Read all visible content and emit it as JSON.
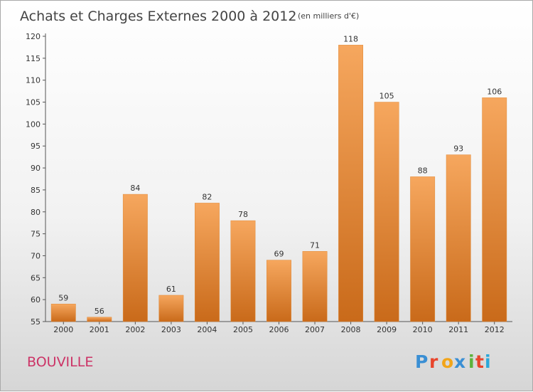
{
  "title": "Achats et Charges Externes 2000 à 2012",
  "subtitle": "(en milliers d'€)",
  "place": "BOUVILLE",
  "brand": {
    "letters": [
      "P",
      "r",
      "o",
      "x",
      "i",
      "t",
      "i"
    ],
    "colors": [
      "#3a8fd4",
      "#e8452c",
      "#f2a51a",
      "#3a8fd4",
      "#5cb23b",
      "#e8452c",
      "#2aa7d9"
    ]
  },
  "colors": {
    "bar": "#f0913a",
    "bar_light": "#f6a75e",
    "bar_dark": "#c96a1a",
    "axis": "#555555",
    "grid": "#cccccc"
  },
  "chart_data": {
    "type": "bar",
    "categories": [
      "2000",
      "2001",
      "2002",
      "2003",
      "2004",
      "2005",
      "2006",
      "2007",
      "2008",
      "2009",
      "2010",
      "2011",
      "2012"
    ],
    "values": [
      59,
      56,
      84,
      61,
      82,
      78,
      69,
      71,
      118,
      105,
      88,
      93,
      106
    ],
    "yticks": [
      55,
      60,
      65,
      70,
      75,
      80,
      85,
      90,
      95,
      100,
      105,
      110,
      115,
      120
    ],
    "ylim": [
      55,
      120
    ],
    "grid": false,
    "legend": "none"
  }
}
